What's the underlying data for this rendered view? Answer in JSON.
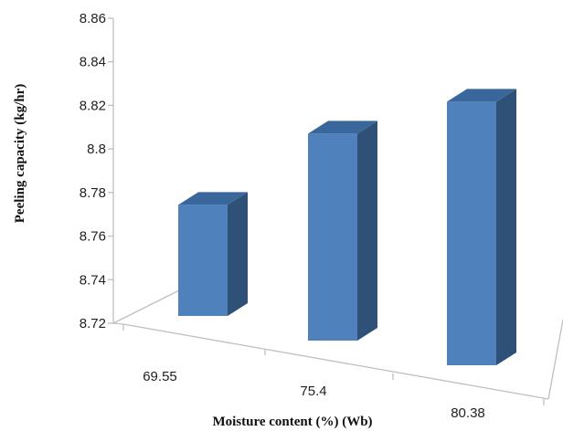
{
  "chart_data": {
    "type": "bar",
    "style": "3d-column",
    "categories": [
      "69.55",
      "75.4",
      "80.38"
    ],
    "values": [
      8.771,
      8.815,
      8.841
    ],
    "xlabel": "Moisture content (%) (Wb)",
    "ylabel": "Peeling capacity (kg/hr)",
    "ylim": [
      8.72,
      8.86
    ],
    "yticks": [
      "8.72",
      "8.74",
      "8.76",
      "8.78",
      "8.8",
      "8.82",
      "8.84",
      "8.86"
    ],
    "grid": false,
    "legend": "none",
    "colors": {
      "front": "#4f81bd",
      "side": "#2f5177",
      "top": "#3a679b",
      "axis": "#bfbfbf"
    }
  }
}
